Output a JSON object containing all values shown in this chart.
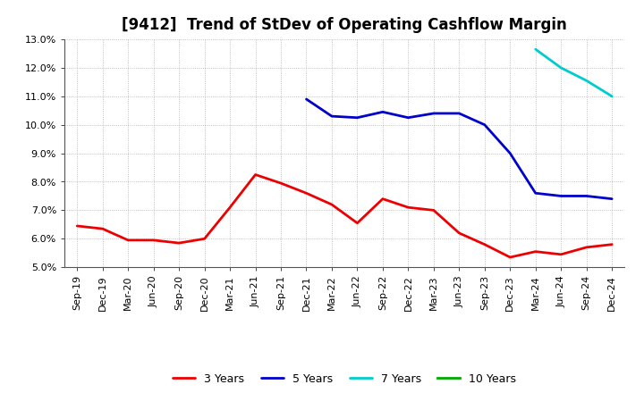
{
  "title": "[9412]  Trend of StDev of Operating Cashflow Margin",
  "ylim": [
    0.05,
    0.13
  ],
  "yticks": [
    0.05,
    0.06,
    0.07,
    0.08,
    0.09,
    0.1,
    0.11,
    0.12,
    0.13
  ],
  "background_color": "#ffffff",
  "grid_color": "#aaaaaa",
  "series": {
    "3 Years": {
      "color": "#ee0000",
      "x": [
        "Sep-19",
        "Dec-19",
        "Mar-20",
        "Jun-20",
        "Sep-20",
        "Dec-20",
        "Mar-21",
        "Jun-21",
        "Sep-21",
        "Dec-21",
        "Mar-22",
        "Jun-22",
        "Sep-22",
        "Dec-22",
        "Mar-23",
        "Jun-23",
        "Sep-23",
        "Dec-23",
        "Mar-24",
        "Jun-24",
        "Sep-24",
        "Dec-24"
      ],
      "y": [
        0.0645,
        0.0635,
        0.0595,
        0.0595,
        0.0585,
        0.06,
        0.071,
        0.0825,
        0.0795,
        0.076,
        0.072,
        0.0655,
        0.074,
        0.071,
        0.07,
        0.062,
        0.058,
        0.0535,
        0.0555,
        0.0545,
        0.057,
        0.058
      ]
    },
    "5 Years": {
      "color": "#0000cc",
      "x": [
        "Dec-21",
        "Mar-22",
        "Jun-22",
        "Sep-22",
        "Dec-22",
        "Mar-23",
        "Jun-23",
        "Sep-23",
        "Dec-23",
        "Mar-24",
        "Jun-24",
        "Sep-24",
        "Dec-24"
      ],
      "y": [
        0.109,
        0.103,
        0.1025,
        0.1045,
        0.1025,
        0.104,
        0.104,
        0.1,
        0.09,
        0.076,
        0.075,
        0.075,
        0.074
      ]
    },
    "7 Years": {
      "color": "#00cccc",
      "x": [
        "Mar-24",
        "Jun-24",
        "Sep-24",
        "Dec-24"
      ],
      "y": [
        0.1265,
        0.12,
        0.1155,
        0.11
      ]
    },
    "10 Years": {
      "color": "#00aa00",
      "x": [],
      "y": []
    }
  },
  "x_labels": [
    "Sep-19",
    "Dec-19",
    "Mar-20",
    "Jun-20",
    "Sep-20",
    "Dec-20",
    "Mar-21",
    "Jun-21",
    "Sep-21",
    "Dec-21",
    "Mar-22",
    "Jun-22",
    "Sep-22",
    "Dec-22",
    "Mar-23",
    "Jun-23",
    "Sep-23",
    "Dec-23",
    "Mar-24",
    "Jun-24",
    "Sep-24",
    "Dec-24"
  ],
  "title_fontsize": 12,
  "tick_fontsize": 8,
  "legend_fontsize": 9,
  "linewidth": 2.0
}
